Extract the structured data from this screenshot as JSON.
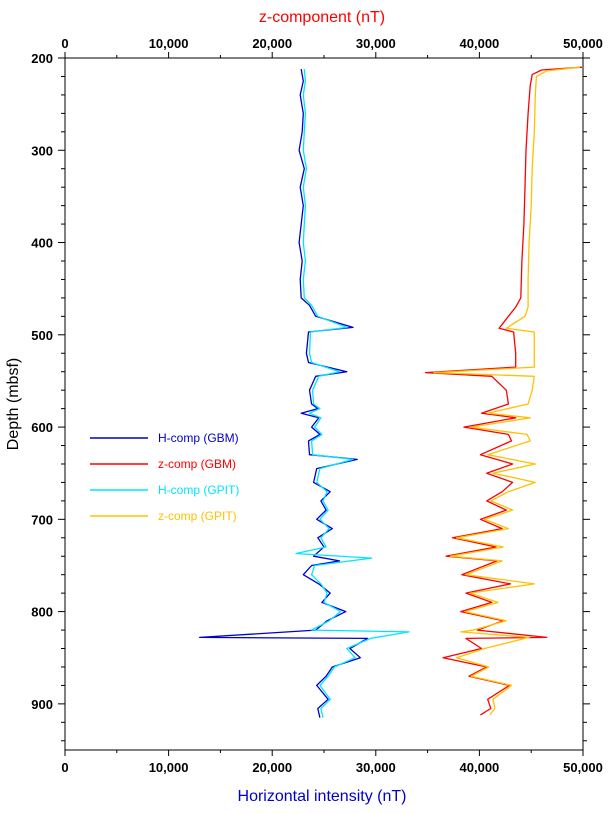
{
  "chart_data": {
    "type": "line",
    "title": "",
    "x_top_label": "z-component (nT)",
    "x_bottom_label": "Horizontal intensity (nT)",
    "ylabel": "Depth (mbsf)",
    "xlim": [
      0,
      50000
    ],
    "ylim": [
      200,
      950
    ],
    "y_inverted": true,
    "x_ticks": [
      0,
      10000,
      20000,
      30000,
      40000,
      50000
    ],
    "x_tick_labels": [
      "0",
      "10,000",
      "20,000",
      "30,000",
      "40,000",
      "50,000"
    ],
    "y_ticks": [
      200,
      300,
      400,
      500,
      600,
      700,
      800,
      900
    ],
    "y_tick_labels": [
      "200",
      "300",
      "400",
      "500",
      "600",
      "700",
      "800",
      "900"
    ],
    "grid": false,
    "legend_position": "middle-left",
    "colors": {
      "top_axis_title": "#ff0000",
      "bottom_axis_title": "#0000cc"
    },
    "series": [
      {
        "name": "H-comp (GBM)",
        "color": "#0000cc",
        "points": [
          [
            22800,
            212
          ],
          [
            23000,
            225
          ],
          [
            22700,
            240
          ],
          [
            23000,
            260
          ],
          [
            22900,
            280
          ],
          [
            22600,
            300
          ],
          [
            23100,
            320
          ],
          [
            22700,
            340
          ],
          [
            23000,
            360
          ],
          [
            22800,
            380
          ],
          [
            22600,
            400
          ],
          [
            22900,
            420
          ],
          [
            22700,
            440
          ],
          [
            22800,
            460
          ],
          [
            23600,
            468
          ],
          [
            24200,
            480
          ],
          [
            27800,
            492
          ],
          [
            23500,
            497
          ],
          [
            23300,
            520
          ],
          [
            23500,
            530
          ],
          [
            27200,
            540
          ],
          [
            24200,
            545
          ],
          [
            23600,
            560
          ],
          [
            23800,
            575
          ],
          [
            24400,
            580
          ],
          [
            22800,
            585
          ],
          [
            24500,
            590
          ],
          [
            23800,
            600
          ],
          [
            24600,
            608
          ],
          [
            23500,
            615
          ],
          [
            23600,
            630
          ],
          [
            28200,
            635
          ],
          [
            24300,
            645
          ],
          [
            24000,
            660
          ],
          [
            25600,
            670
          ],
          [
            24700,
            680
          ],
          [
            25200,
            690
          ],
          [
            24300,
            700
          ],
          [
            25800,
            710
          ],
          [
            24400,
            720
          ],
          [
            25000,
            730
          ],
          [
            24000,
            740
          ],
          [
            26500,
            745
          ],
          [
            23800,
            750
          ],
          [
            23000,
            760
          ],
          [
            24500,
            770
          ],
          [
            25600,
            780
          ],
          [
            24800,
            790
          ],
          [
            27100,
            800
          ],
          [
            25300,
            810
          ],
          [
            24200,
            820
          ],
          [
            13000,
            828
          ],
          [
            29200,
            829
          ],
          [
            27500,
            840
          ],
          [
            28500,
            850
          ],
          [
            25800,
            860
          ],
          [
            25200,
            870
          ],
          [
            24300,
            880
          ],
          [
            25400,
            895
          ],
          [
            24400,
            905
          ],
          [
            24600,
            915
          ]
        ]
      },
      {
        "name": "z-comp (GBM)",
        "color": "#ff0000",
        "points": [
          [
            49900,
            210
          ],
          [
            46000,
            213
          ],
          [
            45100,
            218
          ],
          [
            44900,
            230
          ],
          [
            44700,
            260
          ],
          [
            44500,
            300
          ],
          [
            44400,
            340
          ],
          [
            44300,
            380
          ],
          [
            44100,
            420
          ],
          [
            44000,
            460
          ],
          [
            43500,
            470
          ],
          [
            42800,
            480
          ],
          [
            41900,
            493
          ],
          [
            43300,
            497
          ],
          [
            43500,
            520
          ],
          [
            43500,
            535
          ],
          [
            34800,
            541
          ],
          [
            41200,
            545
          ],
          [
            42600,
            560
          ],
          [
            42800,
            575
          ],
          [
            40200,
            585
          ],
          [
            43500,
            590
          ],
          [
            38500,
            600
          ],
          [
            42800,
            608
          ],
          [
            43100,
            615
          ],
          [
            40100,
            630
          ],
          [
            43200,
            640
          ],
          [
            40700,
            650
          ],
          [
            43200,
            660
          ],
          [
            42200,
            670
          ],
          [
            40700,
            680
          ],
          [
            42600,
            690
          ],
          [
            40100,
            700
          ],
          [
            42200,
            710
          ],
          [
            37400,
            720
          ],
          [
            41600,
            730
          ],
          [
            36800,
            740
          ],
          [
            41700,
            745
          ],
          [
            38300,
            760
          ],
          [
            43000,
            770
          ],
          [
            38700,
            780
          ],
          [
            41200,
            790
          ],
          [
            38200,
            800
          ],
          [
            42300,
            810
          ],
          [
            39800,
            820
          ],
          [
            46500,
            828
          ],
          [
            38700,
            829
          ],
          [
            40200,
            840
          ],
          [
            36500,
            850
          ],
          [
            40700,
            860
          ],
          [
            39000,
            870
          ],
          [
            42900,
            880
          ],
          [
            40800,
            895
          ],
          [
            41100,
            905
          ],
          [
            40100,
            912
          ]
        ]
      },
      {
        "name": "H-comp (GPIT)",
        "color": "#00e5ff",
        "points": [
          [
            23100,
            212
          ],
          [
            23200,
            225
          ],
          [
            23000,
            240
          ],
          [
            23200,
            260
          ],
          [
            23100,
            280
          ],
          [
            23000,
            300
          ],
          [
            23300,
            320
          ],
          [
            23000,
            340
          ],
          [
            23200,
            360
          ],
          [
            23100,
            380
          ],
          [
            23000,
            400
          ],
          [
            23200,
            420
          ],
          [
            23000,
            440
          ],
          [
            23100,
            460
          ],
          [
            23800,
            468
          ],
          [
            24400,
            480
          ],
          [
            27200,
            492
          ],
          [
            23700,
            497
          ],
          [
            23600,
            520
          ],
          [
            23800,
            530
          ],
          [
            26500,
            540
          ],
          [
            24500,
            545
          ],
          [
            23900,
            560
          ],
          [
            24000,
            575
          ],
          [
            24600,
            580
          ],
          [
            23600,
            585
          ],
          [
            24700,
            590
          ],
          [
            24100,
            600
          ],
          [
            24800,
            608
          ],
          [
            23800,
            615
          ],
          [
            23900,
            630
          ],
          [
            27800,
            635
          ],
          [
            24600,
            645
          ],
          [
            24300,
            660
          ],
          [
            25300,
            670
          ],
          [
            24900,
            680
          ],
          [
            25400,
            690
          ],
          [
            24600,
            700
          ],
          [
            25500,
            710
          ],
          [
            24700,
            720
          ],
          [
            25200,
            730
          ],
          [
            22300,
            737
          ],
          [
            29600,
            742
          ],
          [
            24100,
            750
          ],
          [
            23800,
            760
          ],
          [
            24700,
            770
          ],
          [
            25300,
            780
          ],
          [
            25000,
            790
          ],
          [
            26600,
            800
          ],
          [
            25500,
            810
          ],
          [
            23800,
            820
          ],
          [
            33200,
            822
          ],
          [
            29500,
            829
          ],
          [
            27200,
            840
          ],
          [
            28000,
            850
          ],
          [
            26000,
            860
          ],
          [
            25400,
            870
          ],
          [
            24600,
            880
          ],
          [
            25600,
            895
          ],
          [
            24700,
            905
          ],
          [
            24900,
            915
          ]
        ]
      },
      {
        "name": "z-comp (GPIT)",
        "color": "#ffc000",
        "points": [
          [
            49700,
            210
          ],
          [
            46500,
            214
          ],
          [
            45500,
            220
          ],
          [
            45400,
            240
          ],
          [
            45300,
            280
          ],
          [
            45100,
            320
          ],
          [
            45000,
            360
          ],
          [
            44800,
            400
          ],
          [
            44700,
            440
          ],
          [
            44700,
            470
          ],
          [
            44400,
            480
          ],
          [
            42600,
            493
          ],
          [
            45300,
            497
          ],
          [
            45300,
            520
          ],
          [
            45300,
            535
          ],
          [
            35600,
            541
          ],
          [
            45300,
            545
          ],
          [
            45100,
            560
          ],
          [
            44700,
            575
          ],
          [
            40800,
            585
          ],
          [
            44900,
            590
          ],
          [
            39200,
            600
          ],
          [
            44600,
            608
          ],
          [
            44900,
            615
          ],
          [
            40800,
            630
          ],
          [
            45400,
            640
          ],
          [
            41300,
            650
          ],
          [
            45400,
            660
          ],
          [
            42800,
            670
          ],
          [
            41100,
            680
          ],
          [
            43200,
            690
          ],
          [
            40500,
            700
          ],
          [
            42800,
            710
          ],
          [
            37800,
            720
          ],
          [
            42300,
            730
          ],
          [
            37200,
            740
          ],
          [
            42200,
            745
          ],
          [
            38700,
            760
          ],
          [
            45300,
            770
          ],
          [
            39100,
            780
          ],
          [
            41800,
            790
          ],
          [
            38600,
            800
          ],
          [
            42600,
            810
          ],
          [
            39400,
            820
          ],
          [
            38200,
            822
          ],
          [
            44800,
            828
          ],
          [
            40500,
            840
          ],
          [
            37800,
            850
          ],
          [
            40900,
            860
          ],
          [
            39200,
            870
          ],
          [
            43100,
            880
          ],
          [
            41300,
            895
          ],
          [
            41500,
            905
          ],
          [
            41000,
            912
          ]
        ]
      }
    ]
  }
}
